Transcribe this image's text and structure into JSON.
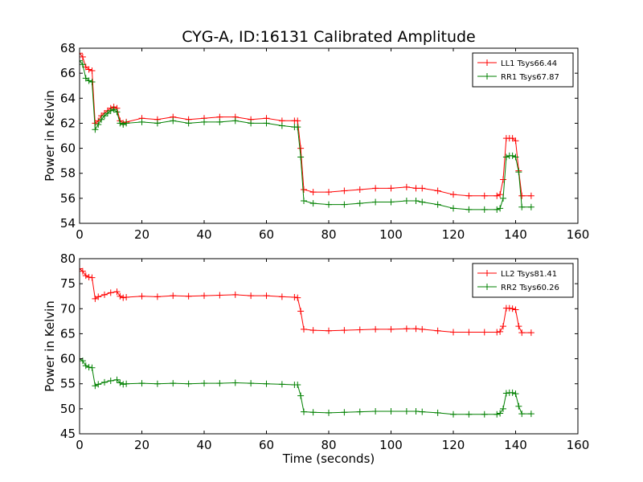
{
  "chart_data": [
    {
      "type": "line",
      "title": "CYG-A, ID:16131 Calibrated Amplitude",
      "xlabel": "",
      "ylabel": "Power in Kelvin",
      "xlim": [
        0,
        160
      ],
      "ylim": [
        54,
        68
      ],
      "xticks": [
        0,
        20,
        40,
        60,
        80,
        100,
        120,
        140,
        160
      ],
      "yticks": [
        54,
        56,
        58,
        60,
        62,
        64,
        66,
        68
      ],
      "grid": false,
      "legend": "top-right",
      "marker": "+",
      "series": [
        {
          "name": "LL1 Tsys66.44",
          "color": "#ff0000",
          "x": [
            0,
            1,
            2,
            3,
            4,
            5,
            6,
            7,
            8,
            9,
            10,
            11,
            12,
            13,
            14,
            15,
            20,
            25,
            30,
            35,
            40,
            45,
            50,
            55,
            60,
            65,
            69,
            70,
            71,
            72,
            75,
            80,
            85,
            90,
            95,
            100,
            105,
            108,
            110,
            115,
            120,
            125,
            130,
            134,
            135,
            136,
            137,
            138,
            139,
            140,
            141,
            142,
            145
          ],
          "y": [
            67.6,
            67.3,
            66.5,
            66.3,
            66.2,
            62.0,
            62.2,
            62.6,
            62.8,
            63.0,
            63.2,
            63.3,
            63.2,
            62.2,
            62.0,
            62.1,
            62.4,
            62.3,
            62.5,
            62.3,
            62.4,
            62.5,
            62.5,
            62.3,
            62.4,
            62.2,
            62.2,
            62.2,
            60.0,
            56.7,
            56.5,
            56.5,
            56.6,
            56.7,
            56.8,
            56.8,
            56.9,
            56.8,
            56.8,
            56.6,
            56.3,
            56.2,
            56.2,
            56.2,
            56.3,
            57.5,
            60.8,
            60.8,
            60.8,
            60.6,
            58.2,
            56.2,
            56.2
          ]
        },
        {
          "name": "RR1 Tsys67.87",
          "color": "#008000",
          "x": [
            0,
            1,
            2,
            3,
            4,
            5,
            6,
            7,
            8,
            9,
            10,
            11,
            12,
            13,
            14,
            15,
            20,
            25,
            30,
            35,
            40,
            45,
            50,
            55,
            60,
            65,
            69,
            70,
            71,
            72,
            75,
            80,
            85,
            90,
            95,
            100,
            105,
            108,
            110,
            115,
            120,
            125,
            130,
            134,
            135,
            136,
            137,
            138,
            139,
            140,
            141,
            142,
            145
          ],
          "y": [
            67.0,
            66.7,
            65.6,
            65.4,
            65.3,
            61.5,
            61.9,
            62.3,
            62.6,
            62.8,
            63.0,
            63.1,
            62.9,
            62.0,
            61.9,
            62.0,
            62.1,
            62.0,
            62.2,
            62.0,
            62.1,
            62.1,
            62.2,
            62.0,
            62.0,
            61.8,
            61.7,
            61.7,
            59.3,
            55.8,
            55.6,
            55.5,
            55.5,
            55.6,
            55.7,
            55.7,
            55.8,
            55.8,
            55.7,
            55.5,
            55.2,
            55.1,
            55.1,
            55.1,
            55.2,
            56.0,
            59.3,
            59.4,
            59.4,
            59.3,
            58.1,
            55.3,
            55.3
          ]
        }
      ]
    },
    {
      "type": "line",
      "title": "",
      "xlabel": "Time (seconds)",
      "ylabel": "Power in Kelvin",
      "xlim": [
        0,
        160
      ],
      "ylim": [
        45,
        80
      ],
      "xticks": [
        0,
        20,
        40,
        60,
        80,
        100,
        120,
        140,
        160
      ],
      "yticks": [
        45,
        50,
        55,
        60,
        65,
        70,
        75,
        80
      ],
      "grid": false,
      "legend": "top-right",
      "marker": "+",
      "series": [
        {
          "name": "LL2 Tsys81.41",
          "color": "#ff0000",
          "x": [
            0,
            1,
            2,
            3,
            4,
            5,
            6,
            8,
            10,
            12,
            13,
            14,
            15,
            20,
            25,
            30,
            35,
            40,
            45,
            50,
            55,
            60,
            65,
            69,
            70,
            71,
            72,
            75,
            80,
            85,
            90,
            95,
            100,
            105,
            108,
            110,
            115,
            120,
            125,
            130,
            134,
            135,
            136,
            137,
            138,
            139,
            140,
            141,
            142,
            145
          ],
          "y": [
            78.0,
            77.5,
            76.6,
            76.3,
            76.2,
            72.0,
            72.4,
            72.8,
            73.2,
            73.4,
            72.5,
            72.2,
            72.3,
            72.5,
            72.4,
            72.6,
            72.5,
            72.6,
            72.7,
            72.8,
            72.6,
            72.6,
            72.4,
            72.3,
            72.2,
            69.5,
            65.9,
            65.7,
            65.6,
            65.7,
            65.8,
            65.9,
            65.9,
            66.0,
            66.0,
            65.9,
            65.6,
            65.3,
            65.3,
            65.3,
            65.3,
            65.4,
            66.5,
            70.1,
            70.1,
            70.0,
            69.8,
            66.5,
            65.2,
            65.2
          ]
        },
        {
          "name": "RR2 Tsys60.26",
          "color": "#008000",
          "x": [
            0,
            1,
            2,
            3,
            4,
            5,
            6,
            8,
            10,
            12,
            13,
            14,
            15,
            20,
            25,
            30,
            35,
            40,
            45,
            50,
            55,
            60,
            65,
            69,
            70,
            71,
            72,
            75,
            80,
            85,
            90,
            95,
            100,
            105,
            108,
            110,
            115,
            120,
            125,
            130,
            134,
            135,
            136,
            137,
            138,
            139,
            140,
            141,
            142,
            145
          ],
          "y": [
            60.0,
            59.6,
            58.6,
            58.3,
            58.2,
            54.6,
            54.9,
            55.3,
            55.6,
            55.8,
            55.2,
            54.9,
            55.0,
            55.1,
            55.0,
            55.1,
            55.0,
            55.1,
            55.1,
            55.2,
            55.1,
            55.0,
            54.9,
            54.8,
            54.8,
            52.6,
            49.4,
            49.3,
            49.2,
            49.3,
            49.4,
            49.5,
            49.5,
            49.5,
            49.5,
            49.4,
            49.2,
            48.9,
            48.9,
            48.9,
            48.9,
            49.1,
            50.0,
            53.1,
            53.2,
            53.2,
            53.0,
            50.5,
            49.0,
            49.0
          ]
        }
      ]
    }
  ]
}
